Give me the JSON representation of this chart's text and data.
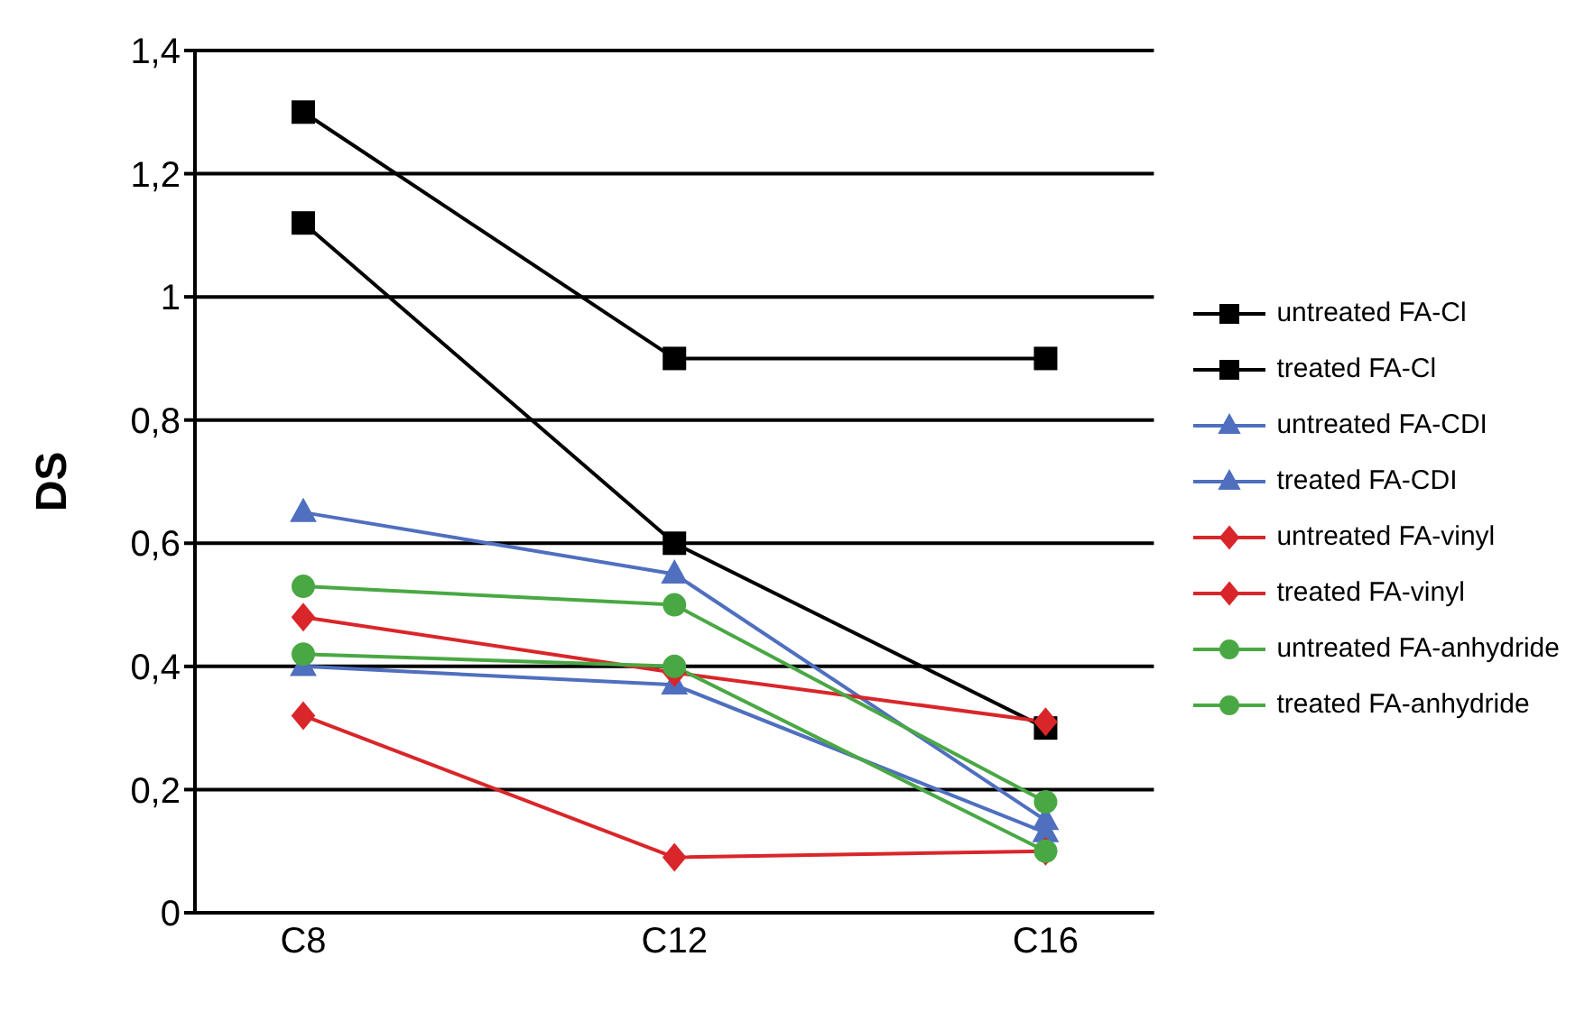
{
  "chart_data": {
    "type": "line",
    "ylabel": "DS",
    "categories": [
      "C8",
      "C12",
      "C16"
    ],
    "ylim": [
      0,
      1.4
    ],
    "yticks": [
      0,
      {
        "value": 0.2,
        "label": "0,2"
      },
      {
        "value": 0.4,
        "label": "0,4"
      },
      {
        "value": 0.6,
        "label": "0,6"
      },
      {
        "value": 0.8,
        "label": "0,8"
      },
      1,
      {
        "value": 1.2,
        "label": "1,2"
      },
      {
        "value": 1.4,
        "label": "1,4"
      }
    ],
    "grid": "y",
    "legend": "right",
    "line_style": "solid",
    "series": [
      {
        "name": "untreated FA-Cl",
        "color": "#000000",
        "marker": "square",
        "values": [
          1.12,
          0.6,
          0.3
        ]
      },
      {
        "name": "treated FA-Cl",
        "color": "#000000",
        "marker": "square",
        "values": [
          1.3,
          0.9,
          0.9
        ]
      },
      {
        "name": "untreated FA-CDI",
        "color": "#4f6fbf",
        "marker": "triangle",
        "values": [
          0.4,
          0.37,
          0.13
        ]
      },
      {
        "name": "treated FA-CDI",
        "color": "#4f6fbf",
        "marker": "triangle",
        "values": [
          0.65,
          0.55,
          0.15
        ]
      },
      {
        "name": "untreated FA-vinyl",
        "color": "#d9262a",
        "marker": "diamond",
        "values": [
          0.32,
          0.09,
          0.1
        ]
      },
      {
        "name": "treated FA-vinyl",
        "color": "#d9262a",
        "marker": "diamond",
        "values": [
          0.48,
          0.39,
          0.31
        ]
      },
      {
        "name": "untreated FA-anhydride",
        "color": "#4aa844",
        "marker": "circle",
        "values": [
          0.42,
          0.4,
          0.1
        ]
      },
      {
        "name": "treated FA-anhydride",
        "color": "#4aa844",
        "marker": "circle",
        "values": [
          0.53,
          0.5,
          0.18
        ]
      }
    ]
  }
}
